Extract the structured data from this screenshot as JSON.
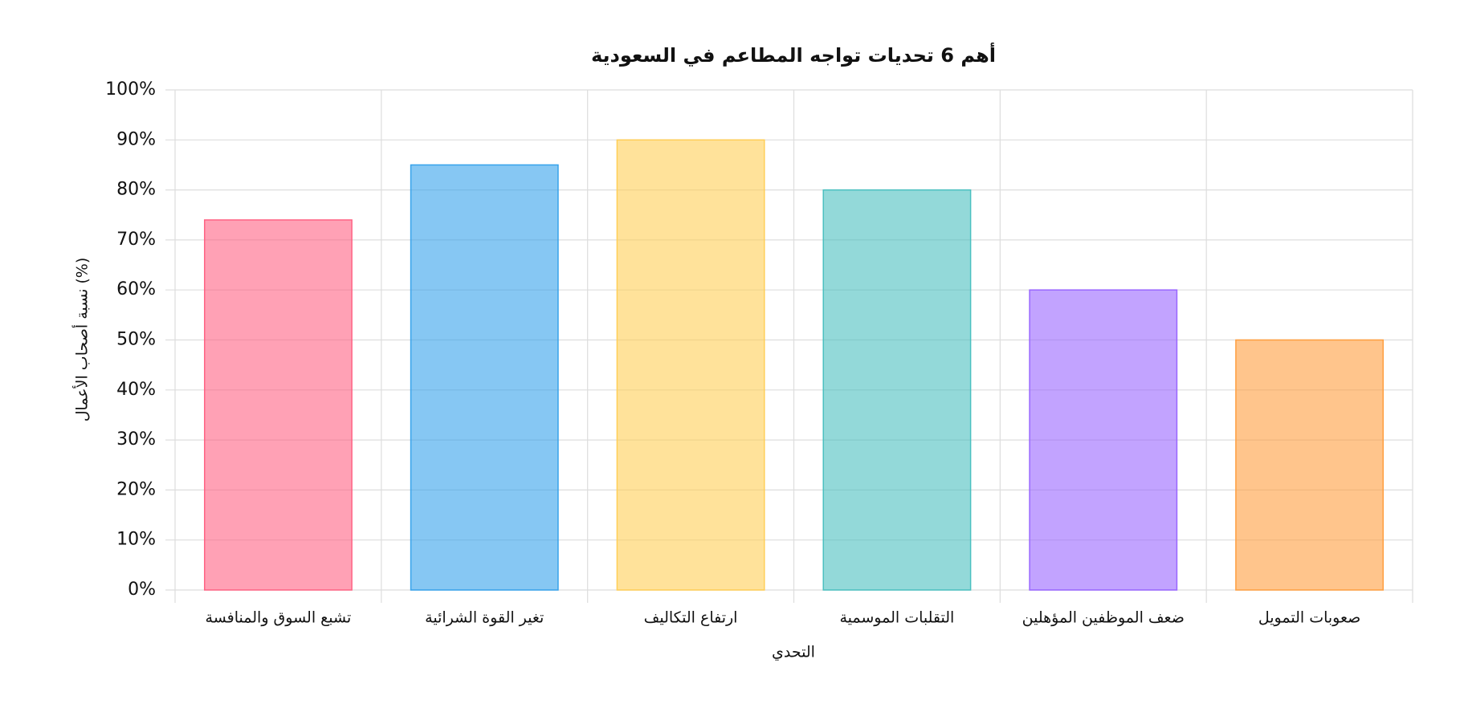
{
  "chart_data": {
    "type": "bar",
    "title": "أهم 6 تحديات تواجه المطاعم في السعودية",
    "x_label": "التحدي",
    "y_label": "نسبة أصحاب الأعمال (%)",
    "categories": [
      "تشبع السوق والمنافسة",
      "تغير القوة الشرائية",
      "ارتفاع التكاليف",
      "التقلبات الموسمية",
      "ضعف الموظفين المؤهلين",
      "صعوبات التمويل"
    ],
    "values": [
      74,
      85,
      90,
      80,
      60,
      50
    ],
    "colors": [
      "#ff6384",
      "#36a2eb",
      "#ffce56",
      "#4bc0c0",
      "#9966ff",
      "#ff9f40"
    ],
    "ylim": [
      0,
      100
    ],
    "yticks": [
      {
        "value": 0,
        "label": "0%"
      },
      {
        "value": 10,
        "label": "10%"
      },
      {
        "value": 20,
        "label": "20%"
      },
      {
        "value": 30,
        "label": "30%"
      },
      {
        "value": 40,
        "label": "40%"
      },
      {
        "value": 50,
        "label": "50%"
      },
      {
        "value": 60,
        "label": "60%"
      },
      {
        "value": 70,
        "label": "70%"
      },
      {
        "value": 80,
        "label": "80%"
      },
      {
        "value": 90,
        "label": "90%"
      },
      {
        "value": 100,
        "label": "100%"
      }
    ],
    "grid": true
  }
}
